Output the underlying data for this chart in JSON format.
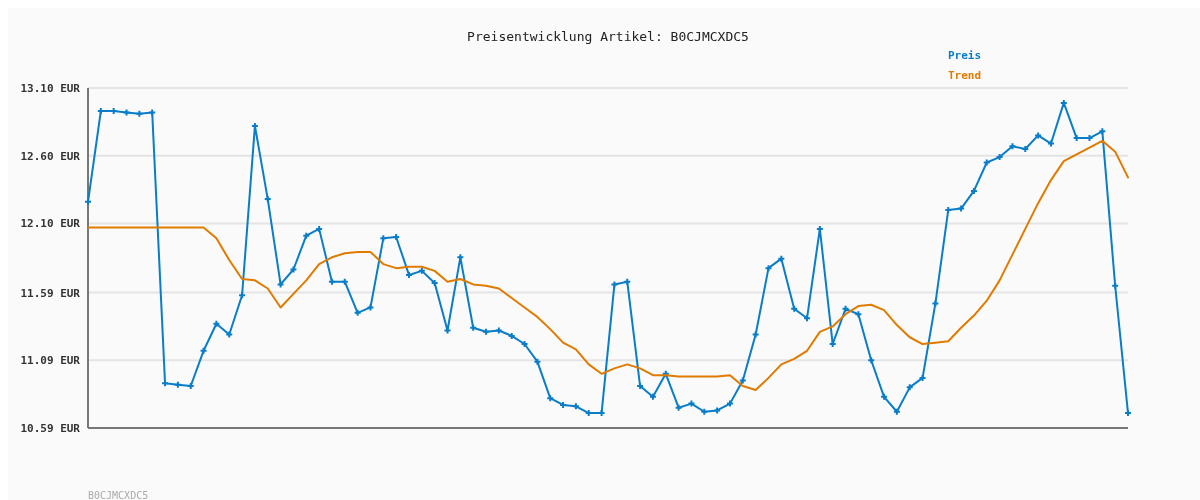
{
  "chart_data": {
    "type": "line",
    "title": "Preisentwicklung Artikel: B0CJMCXDC5",
    "categories": [
      null,
      null,
      null,
      null,
      null,
      null,
      null,
      null,
      null,
      null,
      null,
      null,
      null,
      null,
      null,
      null,
      null,
      null,
      null,
      null,
      null,
      null,
      null,
      null,
      null,
      null,
      null,
      null,
      null,
      null,
      null,
      null,
      null,
      null,
      null,
      null,
      null,
      null,
      null,
      null,
      null,
      null,
      null,
      null,
      null,
      null,
      null,
      null,
      null,
      null,
      null,
      null,
      null,
      null,
      null,
      null,
      null,
      null,
      null,
      null,
      null,
      null,
      null,
      null,
      null,
      null,
      null,
      null,
      null,
      null,
      null,
      null,
      null,
      null,
      null,
      null,
      null,
      null,
      null,
      null,
      null,
      null
    ],
    "series": [
      {
        "name": "Preis",
        "color": "#0a7dc8",
        "marker": "cross",
        "values": [
          12.26,
          12.93,
          12.93,
          12.92,
          12.91,
          12.92,
          10.92,
          10.91,
          10.9,
          11.16,
          11.36,
          11.28,
          11.57,
          12.82,
          12.28,
          11.65,
          11.76,
          12.01,
          12.06,
          11.67,
          11.67,
          11.44,
          11.48,
          11.99,
          12.0,
          11.72,
          11.75,
          11.66,
          11.31,
          11.85,
          11.33,
          11.3,
          11.31,
          11.27,
          11.21,
          11.08,
          10.81,
          10.76,
          10.75,
          10.7,
          10.7,
          11.65,
          11.67,
          10.9,
          10.82,
          10.99,
          10.74,
          10.77,
          10.71,
          10.72,
          10.77,
          10.94,
          11.28,
          11.77,
          11.84,
          11.47,
          11.4,
          12.06,
          11.21,
          11.47,
          11.43,
          11.09,
          10.82,
          10.71,
          10.89,
          10.96,
          11.51,
          12.2,
          12.21,
          12.34,
          12.55,
          12.59,
          12.67,
          12.65,
          12.75,
          12.69,
          12.99,
          12.73,
          12.73,
          12.78,
          11.64,
          10.7
        ]
      },
      {
        "name": "Trend",
        "color": "#e07b00",
        "marker": "none",
        "values": [
          12.07,
          12.07,
          12.07,
          12.07,
          12.07,
          12.07,
          12.07,
          12.07,
          12.07,
          12.07,
          11.99,
          11.83,
          11.69,
          11.68,
          11.62,
          11.48,
          11.58,
          11.68,
          11.8,
          11.85,
          11.88,
          11.89,
          11.89,
          11.8,
          11.77,
          11.78,
          11.78,
          11.75,
          11.67,
          11.69,
          11.65,
          11.64,
          11.62,
          11.55,
          11.48,
          11.41,
          11.32,
          11.22,
          11.17,
          11.06,
          10.99,
          11.03,
          11.06,
          11.03,
          10.98,
          10.98,
          10.97,
          10.97,
          10.97,
          10.97,
          10.98,
          10.9,
          10.87,
          10.96,
          11.06,
          11.1,
          11.16,
          11.3,
          11.34,
          11.43,
          11.49,
          11.5,
          11.46,
          11.35,
          11.26,
          11.21,
          11.22,
          11.23,
          11.33,
          11.42,
          11.53,
          11.68,
          11.87,
          12.06,
          12.25,
          12.42,
          12.56,
          12.61,
          12.66,
          12.71,
          12.63,
          12.44
        ]
      }
    ],
    "ylim": [
      10.59,
      13.1
    ],
    "yticks": [
      {
        "value": 10.59,
        "label": "10.59 EUR"
      },
      {
        "value": 11.09,
        "label": "11.09 EUR"
      },
      {
        "value": 11.59,
        "label": "11.59 EUR"
      },
      {
        "value": 12.1,
        "label": "12.10 EUR"
      },
      {
        "value": 12.6,
        "label": "12.60 EUR"
      },
      {
        "value": 13.1,
        "label": "13.10 EUR"
      }
    ],
    "grid": "y",
    "legend": "top right",
    "line_style": "solid",
    "annotations": [
      "B0CJMCXDC5"
    ]
  }
}
